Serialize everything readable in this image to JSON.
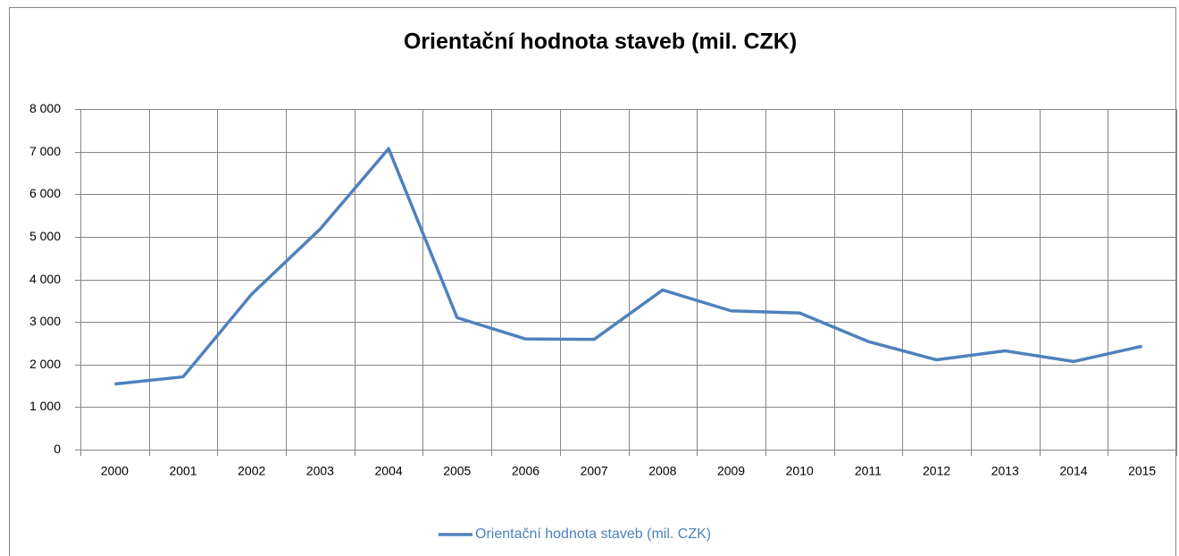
{
  "chart_data": {
    "type": "line",
    "title": "Orientační hodnota staveb (mil. CZK)",
    "categories": [
      "2000",
      "2001",
      "2002",
      "2003",
      "2004",
      "2005",
      "2006",
      "2007",
      "2008",
      "2009",
      "2010",
      "2011",
      "2012",
      "2013",
      "2014",
      "2015"
    ],
    "series": [
      {
        "name": "Orientační hodnota staveb (mil. CZK)",
        "color": "#4f81bd",
        "values": [
          1540,
          1710,
          3650,
          5180,
          7070,
          3100,
          2600,
          2590,
          3750,
          3260,
          3210,
          2540,
          2110,
          2320,
          2070,
          2430
        ]
      }
    ],
    "ylim": [
      0,
      8000
    ],
    "yticks": [
      0,
      {
        "value": 1000,
        "label": "1 000"
      },
      {
        "value": 2000,
        "label": "2 000"
      },
      {
        "value": 3000,
        "label": "3 000"
      },
      {
        "value": 4000,
        "label": "4 000"
      },
      {
        "value": 5000,
        "label": "5 000"
      },
      {
        "value": 6000,
        "label": "6 000"
      },
      {
        "value": 7000,
        "label": "7 000"
      },
      {
        "value": 8000,
        "label": "8 000"
      }
    ],
    "grid": true,
    "legend": "bottom"
  }
}
